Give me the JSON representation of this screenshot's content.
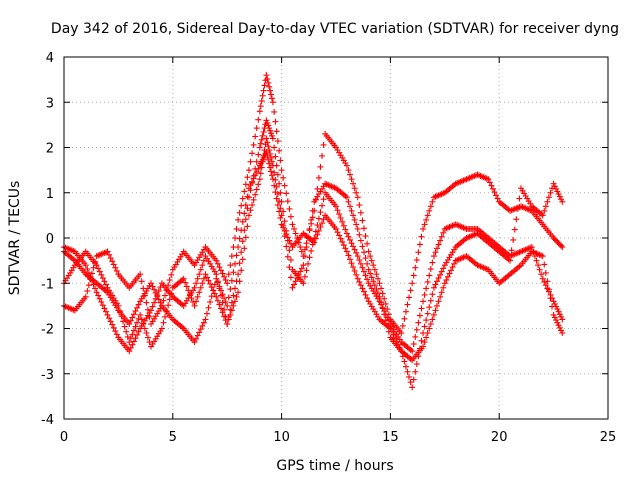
{
  "chart_data": {
    "type": "scatter",
    "title": "Day 342 of 2016, Sidereal Day-to-day VTEC variation (SDTVAR) for receiver dyng",
    "xlabel": "GPS time / hours",
    "ylabel": "SDTVAR / TECUs",
    "xlim": [
      0,
      25
    ],
    "ylim": [
      -4,
      4
    ],
    "xticks": [
      "0",
      "5",
      "10",
      "15",
      "20",
      "25"
    ],
    "yticks": [
      "-4",
      "-3",
      "-2",
      "-1",
      "0",
      "1",
      "2",
      "3",
      "4"
    ],
    "grid": true,
    "marker": "+",
    "color": "#ff0000",
    "series": [
      {
        "points": [
          [
            0.0,
            -0.3
          ],
          [
            0.5,
            -0.5
          ],
          [
            1.0,
            -0.8
          ],
          [
            1.5,
            -1.0
          ],
          [
            2.0,
            -1.2
          ],
          [
            2.5,
            -1.6
          ],
          [
            3.0,
            -1.9
          ],
          [
            3.5,
            -1.4
          ],
          [
            4.0,
            -1.0
          ],
          [
            4.5,
            -1.5
          ],
          [
            5.0,
            -0.7
          ],
          [
            5.5,
            -0.3
          ],
          [
            6.0,
            -0.6
          ],
          [
            6.5,
            -0.2
          ],
          [
            7.0,
            -0.5
          ],
          [
            7.5,
            -1.0
          ],
          [
            8.0,
            0.4
          ],
          [
            8.5,
            1.5
          ],
          [
            9.0,
            2.8
          ],
          [
            9.3,
            3.6
          ],
          [
            9.6,
            3.0
          ],
          [
            10.0,
            1.5
          ],
          [
            10.5,
            0.3
          ],
          [
            11.0,
            -0.4
          ],
          [
            11.5,
            0.6
          ],
          [
            12.0,
            2.3
          ],
          [
            12.5,
            2.0
          ],
          [
            13.0,
            1.6
          ],
          [
            13.5,
            0.9
          ],
          [
            14.0,
            -0.3
          ],
          [
            14.5,
            -1.0
          ],
          [
            15.0,
            -1.8
          ],
          [
            15.5,
            -2.1
          ],
          [
            16.0,
            -1.0
          ],
          [
            16.5,
            0.2
          ],
          [
            17.0,
            0.9
          ],
          [
            17.5,
            1.0
          ],
          [
            18.0,
            1.2
          ],
          [
            18.5,
            1.3
          ],
          [
            19.0,
            1.4
          ],
          [
            19.5,
            1.3
          ],
          [
            20.0,
            0.8
          ],
          [
            20.5,
            0.6
          ],
          [
            21.0,
            0.7
          ],
          [
            21.5,
            0.6
          ],
          [
            22.0,
            0.3
          ],
          [
            22.5,
            0.0
          ],
          [
            22.9,
            -0.2
          ]
        ]
      },
      {
        "points": [
          [
            0.0,
            -1.0
          ],
          [
            0.5,
            -0.6
          ],
          [
            1.0,
            -0.3
          ],
          [
            1.5,
            -0.6
          ],
          [
            2.0,
            -1.1
          ],
          [
            2.5,
            -1.5
          ],
          [
            3.0,
            -2.3
          ],
          [
            3.5,
            -1.7
          ],
          [
            4.0,
            -2.4
          ],
          [
            4.5,
            -2.0
          ],
          [
            5.0,
            -1.1
          ],
          [
            5.5,
            -0.9
          ],
          [
            6.0,
            -1.5
          ],
          [
            6.5,
            -0.8
          ],
          [
            7.0,
            -1.3
          ],
          [
            7.5,
            -1.9
          ],
          [
            8.0,
            -0.8
          ],
          [
            8.5,
            0.9
          ],
          [
            9.0,
            2.0
          ],
          [
            9.3,
            2.6
          ],
          [
            9.6,
            2.2
          ],
          [
            10.0,
            0.8
          ],
          [
            10.5,
            -0.7
          ],
          [
            11.0,
            -1.0
          ],
          [
            11.5,
            0.0
          ],
          [
            12.0,
            1.0
          ],
          [
            12.5,
            0.7
          ],
          [
            13.0,
            0.1
          ],
          [
            13.5,
            -0.4
          ],
          [
            14.0,
            -1.0
          ],
          [
            14.5,
            -1.4
          ],
          [
            15.0,
            -1.9
          ],
          [
            15.5,
            -2.3
          ],
          [
            16.0,
            -2.5
          ],
          [
            16.5,
            -1.4
          ],
          [
            17.0,
            -0.4
          ],
          [
            17.5,
            0.2
          ],
          [
            18.0,
            0.3
          ],
          [
            18.5,
            0.2
          ],
          [
            19.0,
            0.2
          ],
          [
            19.5,
            0.0
          ],
          [
            20.0,
            -0.2
          ],
          [
            20.5,
            -0.4
          ],
          [
            21.0,
            -0.3
          ],
          [
            21.5,
            -0.2
          ],
          [
            22.0,
            -0.9
          ],
          [
            22.5,
            -1.4
          ],
          [
            22.9,
            -1.8
          ]
        ]
      },
      {
        "points": [
          [
            0.0,
            -1.5
          ],
          [
            0.5,
            -1.6
          ],
          [
            1.0,
            -1.3
          ],
          [
            1.5,
            -0.4
          ],
          [
            2.0,
            -0.3
          ],
          [
            2.5,
            -0.8
          ],
          [
            3.0,
            -1.1
          ],
          [
            3.5,
            -0.8
          ],
          [
            4.0,
            -1.9
          ],
          [
            4.5,
            -1.5
          ],
          [
            5.0,
            -1.8
          ],
          [
            5.5,
            -2.0
          ],
          [
            6.0,
            -2.3
          ],
          [
            6.5,
            -1.8
          ],
          [
            7.0,
            -0.9
          ],
          [
            7.5,
            -1.5
          ],
          [
            8.0,
            -0.2
          ],
          [
            8.5,
            1.1
          ],
          [
            9.0,
            1.6
          ],
          [
            9.3,
            1.9
          ],
          [
            9.6,
            1.3
          ],
          [
            10.0,
            0.3
          ],
          [
            10.5,
            -0.2
          ],
          [
            11.0,
            0.1
          ],
          [
            11.5,
            -0.1
          ],
          [
            12.0,
            0.5
          ],
          [
            12.5,
            0.2
          ],
          [
            13.0,
            -0.3
          ],
          [
            13.5,
            -0.9
          ],
          [
            14.0,
            -1.4
          ],
          [
            14.5,
            -1.8
          ],
          [
            15.0,
            -2.0
          ],
          [
            15.5,
            -2.5
          ],
          [
            16.0,
            -2.7
          ],
          [
            16.5,
            -2.4
          ],
          [
            17.0,
            -1.7
          ],
          [
            17.5,
            -1.0
          ],
          [
            18.0,
            -0.5
          ],
          [
            18.5,
            -0.4
          ],
          [
            19.0,
            -0.6
          ],
          [
            19.5,
            -0.7
          ],
          [
            20.0,
            -1.0
          ],
          [
            20.5,
            -0.8
          ],
          [
            21.0,
            -0.6
          ],
          [
            21.5,
            -0.3
          ],
          [
            22.0,
            -0.4
          ],
          [
            22.5,
            -1.7
          ],
          [
            22.9,
            -2.1
          ]
        ]
      },
      {
        "points": [
          [
            0.0,
            -0.2
          ],
          [
            0.5,
            -0.3
          ],
          [
            1.0,
            -0.6
          ],
          [
            1.5,
            -1.2
          ],
          [
            2.0,
            -1.7
          ],
          [
            2.5,
            -2.2
          ],
          [
            3.0,
            -2.5
          ],
          [
            3.5,
            -2.0
          ],
          [
            4.0,
            -1.6
          ],
          [
            4.5,
            -1.0
          ],
          [
            5.0,
            -1.3
          ],
          [
            5.5,
            -1.5
          ],
          [
            6.0,
            -1.1
          ],
          [
            6.5,
            -0.4
          ],
          [
            7.0,
            -0.8
          ],
          [
            7.5,
            -1.9
          ],
          [
            8.0,
            -1.2
          ],
          [
            8.5,
            0.5
          ],
          [
            9.0,
            1.3
          ],
          [
            9.3,
            2.2
          ],
          [
            9.6,
            1.6
          ],
          [
            10.0,
            0.5
          ],
          [
            10.5,
            -1.1
          ],
          [
            11.0,
            -0.6
          ],
          [
            11.5,
            0.8
          ],
          [
            12.0,
            1.2
          ],
          [
            12.5,
            1.1
          ],
          [
            13.0,
            0.9
          ],
          [
            13.5,
            0.2
          ],
          [
            14.0,
            -0.7
          ],
          [
            14.5,
            -1.3
          ],
          [
            15.0,
            -2.2
          ],
          [
            15.5,
            -2.5
          ],
          [
            16.0,
            -3.3
          ],
          [
            16.5,
            -2.1
          ],
          [
            17.0,
            -1.1
          ],
          [
            17.5,
            -0.6
          ],
          [
            18.0,
            -0.2
          ],
          [
            18.5,
            0.0
          ],
          [
            19.0,
            0.1
          ],
          [
            19.5,
            -0.1
          ],
          [
            20.0,
            -0.3
          ],
          [
            20.5,
            -0.5
          ],
          [
            21.0,
            1.1
          ],
          [
            21.5,
            0.7
          ],
          [
            22.0,
            0.5
          ],
          [
            22.5,
            1.2
          ],
          [
            22.9,
            0.8
          ]
        ]
      }
    ]
  }
}
